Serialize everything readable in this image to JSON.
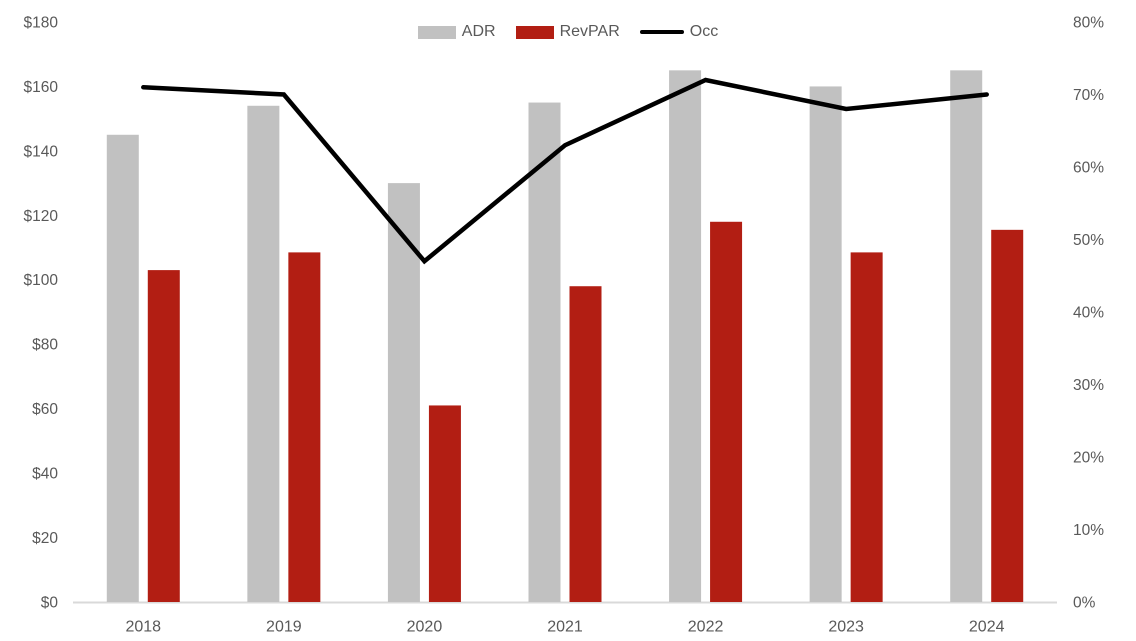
{
  "legend": {
    "items": [
      "ADR",
      "RevPAR",
      "Occ"
    ]
  },
  "chart_data": {
    "type": "bar",
    "subtype": "combo-bar-line-dual-axis",
    "title": "",
    "categories": [
      "2018",
      "2019",
      "2020",
      "2021",
      "2022",
      "2023",
      "2024"
    ],
    "series": [
      {
        "name": "ADR",
        "chart": "bar",
        "axis": "left",
        "color": "#C1C1C1",
        "values": [
          145,
          154,
          130,
          155,
          165,
          160,
          165
        ]
      },
      {
        "name": "RevPAR",
        "chart": "bar",
        "axis": "left",
        "color": "#B21E13",
        "values": [
          103,
          108.5,
          61,
          98,
          118,
          108.5,
          115.5
        ]
      },
      {
        "name": "Occ",
        "chart": "line",
        "axis": "right",
        "color": "#000000",
        "values": [
          71,
          70,
          47,
          63,
          72,
          68,
          70
        ]
      }
    ],
    "left_axis": {
      "min": 0,
      "max": 180,
      "step": 20,
      "format": "dollar",
      "ticks": [
        "$0",
        "$20",
        "$40",
        "$60",
        "$80",
        "$100",
        "$120",
        "$140",
        "$160",
        "$180"
      ]
    },
    "right_axis": {
      "min": 0,
      "max": 80,
      "step": 10,
      "format": "percent",
      "ticks": [
        "0%",
        "10%",
        "20%",
        "30%",
        "40%",
        "50%",
        "60%",
        "70%",
        "80%"
      ]
    },
    "grid": false,
    "legend_position": "top-center",
    "axis_text_color": "#595959",
    "axis_line_color": "#D9D9D9",
    "background": "#FFFFFF"
  }
}
